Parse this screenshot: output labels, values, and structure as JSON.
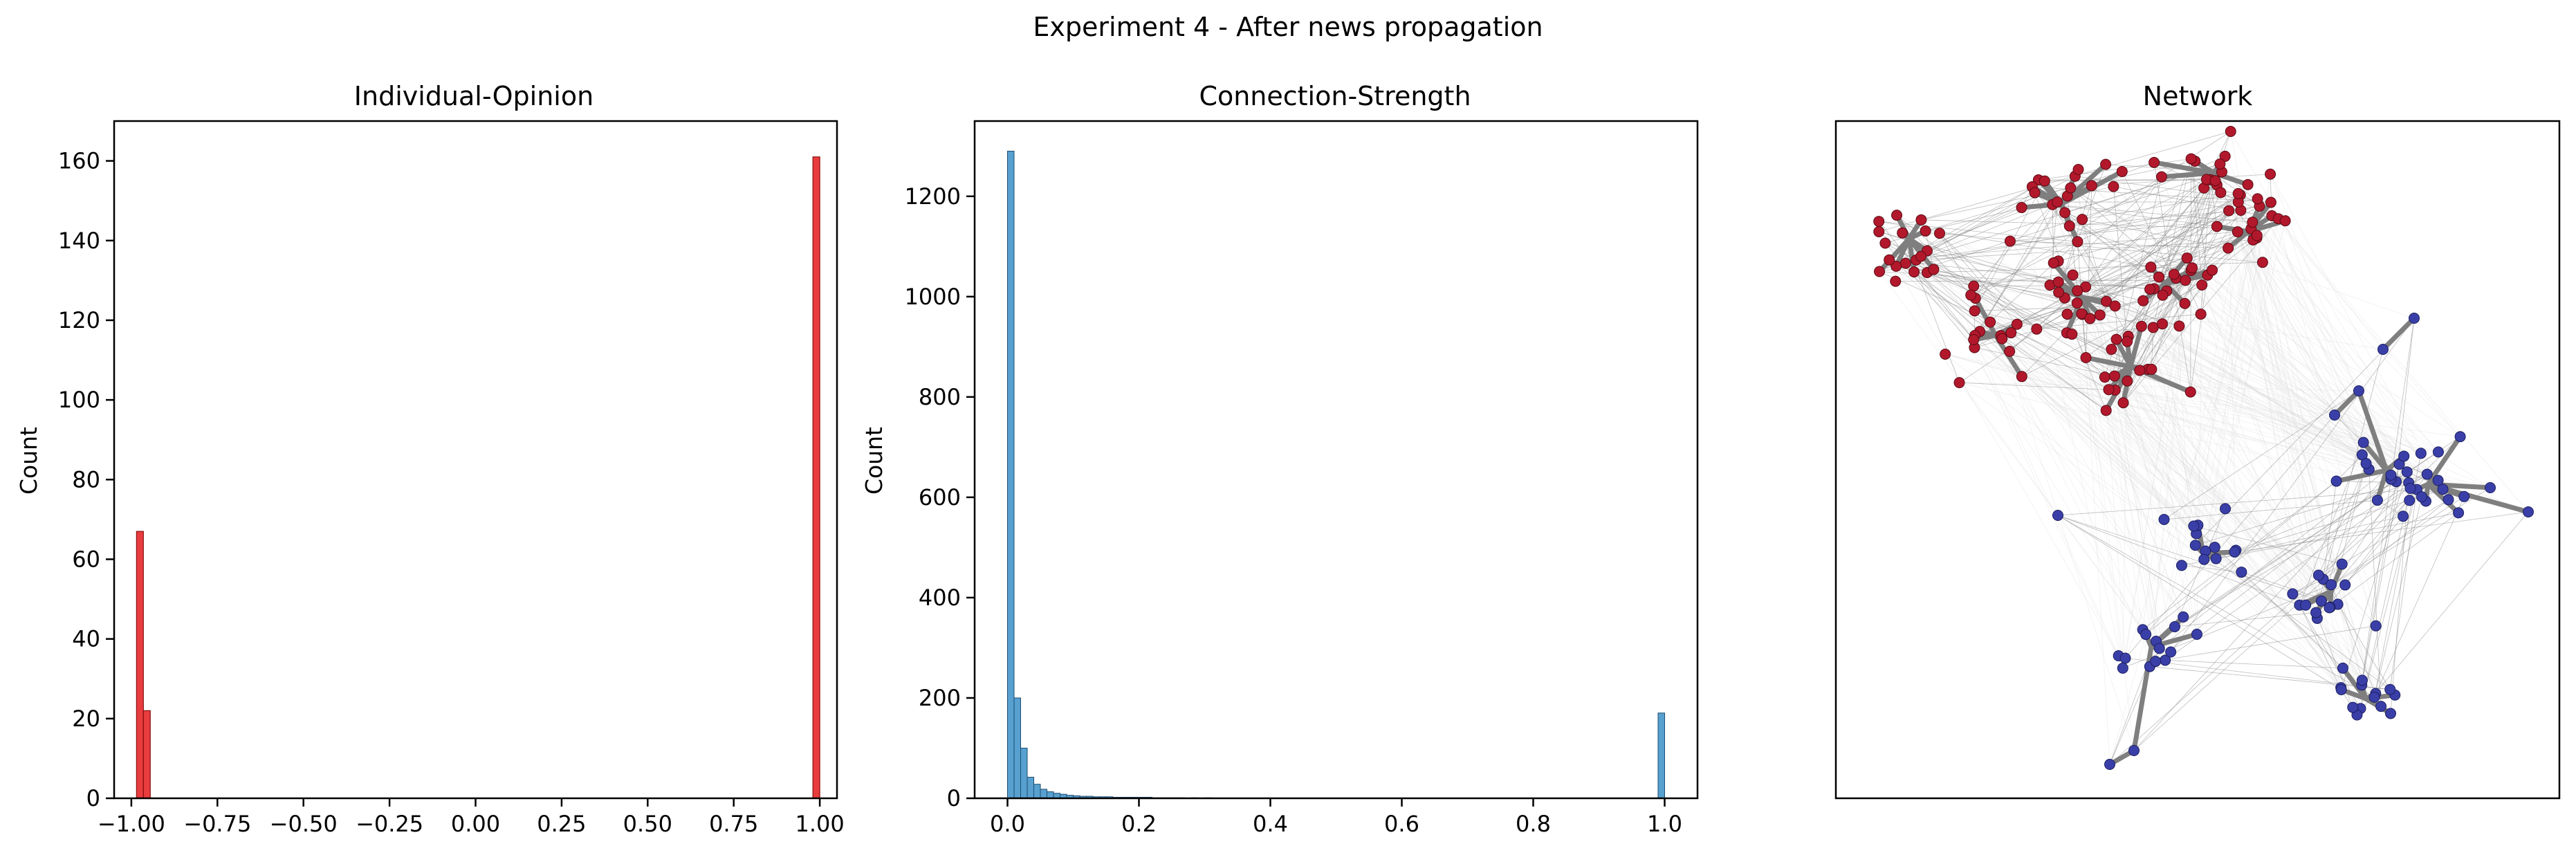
{
  "suptitle": "Experiment 4 - After news propagation",
  "chart_data": [
    {
      "type": "bar",
      "subtype": "histogram",
      "title": "Individual-Opinion",
      "xlabel": "",
      "ylabel": "Count",
      "xlim": [
        -1.05,
        1.05
      ],
      "ylim": [
        0,
        170
      ],
      "xticks": [
        -1.0,
        -0.75,
        -0.5,
        -0.25,
        0.0,
        0.25,
        0.5,
        0.75,
        1.0
      ],
      "xtick_labels": [
        "−1.00",
        "−0.75",
        "−0.50",
        "−0.25",
        "0.00",
        "0.25",
        "0.50",
        "0.75",
        "1.00"
      ],
      "yticks": [
        0,
        20,
        40,
        60,
        80,
        100,
        120,
        140,
        160
      ],
      "ytick_labels": [
        "0",
        "20",
        "40",
        "60",
        "80",
        "100",
        "120",
        "140",
        "160"
      ],
      "color": "#e41a1c",
      "bins": [
        {
          "x0": -0.985,
          "x1": -0.965,
          "count": 67
        },
        {
          "x0": -0.965,
          "x1": -0.945,
          "count": 22
        },
        {
          "x0": 0.98,
          "x1": 1.0,
          "count": 161
        }
      ]
    },
    {
      "type": "bar",
      "subtype": "histogram",
      "title": "Connection-Strength",
      "xlabel": "",
      "ylabel": "Count",
      "xlim": [
        -0.05,
        1.05
      ],
      "ylim": [
        0,
        1350
      ],
      "xticks": [
        0.0,
        0.2,
        0.4,
        0.6,
        0.8,
        1.0
      ],
      "xtick_labels": [
        "0.0",
        "0.2",
        "0.4",
        "0.6",
        "0.8",
        "1.0"
      ],
      "yticks": [
        0,
        200,
        400,
        600,
        800,
        1000,
        1200
      ],
      "ytick_labels": [
        "0",
        "200",
        "400",
        "600",
        "800",
        "1000",
        "1200"
      ],
      "color": "#3a8fc7",
      "bin_start": 0.0,
      "bin_width": 0.01,
      "counts": [
        1290,
        200,
        100,
        42,
        28,
        18,
        13,
        10,
        8,
        6,
        5,
        4,
        4,
        3,
        3,
        3,
        2,
        2,
        2,
        2,
        2,
        2,
        1,
        1,
        1,
        1,
        1,
        0,
        1,
        0,
        1,
        0,
        0,
        0,
        0,
        0,
        0,
        0,
        0,
        0,
        0,
        0,
        0,
        0,
        0,
        0,
        0,
        0,
        0,
        0,
        0,
        0,
        0,
        0,
        0,
        0,
        0,
        0,
        0,
        0,
        0,
        0,
        0,
        0,
        0,
        0,
        0,
        0,
        0,
        0,
        0,
        0,
        0,
        0,
        0,
        0,
        0,
        0,
        0,
        0,
        0,
        0,
        0,
        0,
        0,
        0,
        0,
        0,
        0,
        0,
        0,
        0,
        0,
        0,
        0,
        0,
        0,
        0,
        0,
        170
      ]
    },
    {
      "type": "network",
      "title": "Network",
      "communities": [
        {
          "name": "red",
          "color": "#b2182b",
          "node_count": 160
        },
        {
          "name": "blue",
          "color": "#3a3fa8",
          "node_count": 90
        }
      ]
    }
  ]
}
